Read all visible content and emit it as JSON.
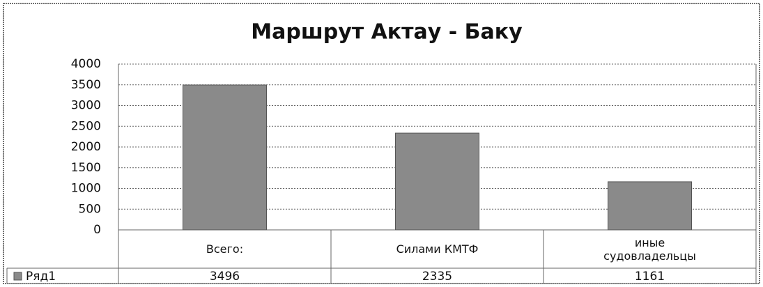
{
  "chart_data": {
    "type": "bar",
    "title": "Маршрут Актау - Баку",
    "categories": [
      "Всего:",
      "Силами КМТФ",
      "иные судовладельцы"
    ],
    "series": [
      {
        "name": "Ряд1",
        "color": "#8a8a8a",
        "values": [
          3496,
          2335,
          1161
        ]
      }
    ],
    "ylim": [
      0,
      4000
    ],
    "yticks": [
      0,
      500,
      1000,
      1500,
      2000,
      2500,
      3000,
      3500,
      4000
    ],
    "grid": true
  }
}
